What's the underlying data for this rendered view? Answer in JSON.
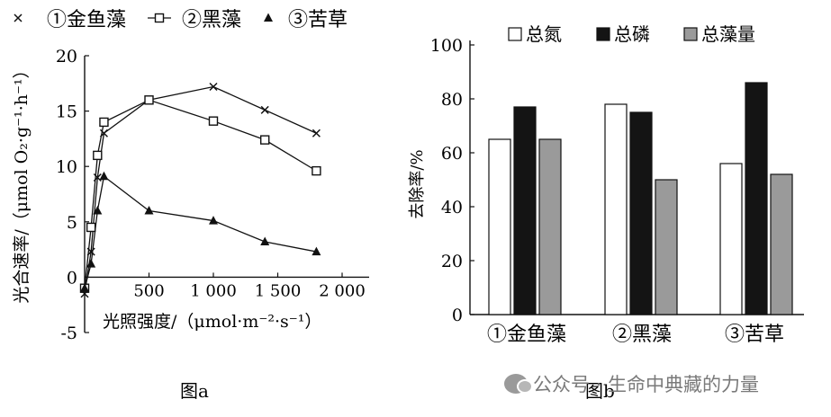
{
  "chart_data": [
    {
      "type": "line",
      "title": "",
      "caption": "图a",
      "xlabel": "光照强度/（μmol·m⁻²·s⁻¹）",
      "ylabel": "光合速率/（μmol O₂·g⁻¹·h⁻¹）",
      "xlim": [
        0,
        2000
      ],
      "ylim": [
        -5,
        20
      ],
      "xticks": [
        500,
        1000,
        1500,
        2000
      ],
      "xtick_labels": [
        "500",
        "1 000",
        "1 500",
        "2 000"
      ],
      "yticks": [
        -5,
        0,
        5,
        10,
        15,
        20
      ],
      "ytick_labels": [
        "-5",
        "0",
        "5",
        "10",
        "15",
        "20"
      ],
      "legend_position": "top",
      "series": [
        {
          "name": "①金鱼藻",
          "marker": "x",
          "x": [
            0,
            50,
            100,
            150,
            500,
            1000,
            1400,
            1800
          ],
          "y": [
            -1.5,
            2.3,
            9,
            13,
            16,
            17.2,
            15.1,
            13
          ]
        },
        {
          "name": "②黑藻",
          "marker": "square",
          "x": [
            0,
            50,
            100,
            150,
            500,
            1000,
            1400,
            1800
          ],
          "y": [
            -1,
            4.5,
            11,
            14,
            16,
            14.1,
            12.4,
            9.6
          ]
        },
        {
          "name": "③苦草",
          "marker": "triangle",
          "x": [
            0,
            50,
            100,
            150,
            500,
            1000,
            1400,
            1800
          ],
          "y": [
            -1,
            1.2,
            6,
            9.1,
            6,
            5.1,
            3.2,
            2.3
          ]
        }
      ]
    },
    {
      "type": "bar",
      "title": "",
      "caption": "图b",
      "ylabel": "去除率/%",
      "ylim": [
        0,
        100
      ],
      "yticks": [
        0,
        20,
        40,
        60,
        80,
        100
      ],
      "categories": [
        "①金鱼藻",
        "②黑藻",
        "③苦草"
      ],
      "legend_position": "top",
      "series": [
        {
          "name": "总氮",
          "color": "#ffffff",
          "values": [
            65,
            78,
            56
          ]
        },
        {
          "name": "总磷",
          "color": "#141414",
          "values": [
            77,
            75,
            86
          ]
        },
        {
          "name": "总藻量",
          "color": "#9a9a9a",
          "values": [
            65,
            50,
            52
          ]
        }
      ]
    }
  ],
  "watermark": "公众号 · 生命中典藏的力量"
}
